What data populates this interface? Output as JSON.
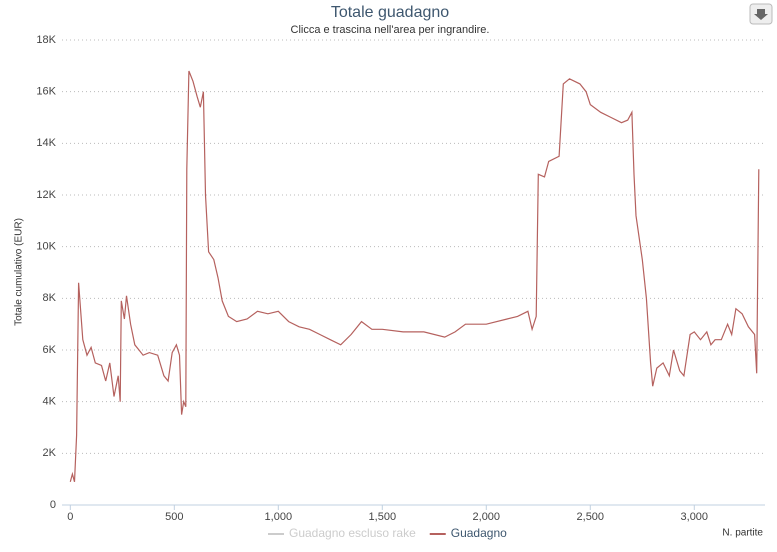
{
  "chart_data": {
    "type": "line",
    "title": "Totale guadagno",
    "subtitle": "Clicca e trascina nell'area per ingrandire.",
    "y_label": "Totale cumulativo (EUR)",
    "x_label": "N. partite",
    "xlim": [
      -40,
      3340
    ],
    "ylim": [
      0,
      18000
    ],
    "xticks": [
      0,
      500,
      {
        "value": 1000,
        "label": "1,000"
      },
      {
        "value": 1500,
        "label": "1,500"
      },
      {
        "value": 2000,
        "label": "2,000"
      },
      {
        "value": 2500,
        "label": "2,500"
      },
      {
        "value": 3000,
        "label": "3,000"
      }
    ],
    "yticks": [
      0,
      {
        "value": 2000,
        "label": "2K"
      },
      {
        "value": 4000,
        "label": "4K"
      },
      {
        "value": 6000,
        "label": "6K"
      },
      {
        "value": 8000,
        "label": "8K"
      },
      {
        "value": 10000,
        "label": "10K"
      },
      {
        "value": 12000,
        "label": "12K"
      },
      {
        "value": 14000,
        "label": "14K"
      },
      {
        "value": 16000,
        "label": "16K"
      },
      {
        "value": 18000,
        "label": "18K"
      }
    ],
    "grid": true,
    "legend": "bottom",
    "x": [
      0,
      10,
      20,
      30,
      40,
      60,
      80,
      100,
      120,
      150,
      170,
      190,
      210,
      230,
      240,
      245,
      260,
      270,
      290,
      310,
      330,
      350,
      380,
      420,
      450,
      470,
      490,
      510,
      525,
      535,
      545,
      555,
      560,
      570,
      590,
      610,
      625,
      640,
      650,
      665,
      690,
      710,
      730,
      760,
      800,
      850,
      900,
      950,
      1000,
      1050,
      1100,
      1150,
      1200,
      1250,
      1300,
      1350,
      1400,
      1450,
      1500,
      1600,
      1700,
      1800,
      1850,
      1900,
      2000,
      2100,
      2150,
      2200,
      2220,
      2240,
      2250,
      2280,
      2300,
      2350,
      2370,
      2400,
      2450,
      2480,
      2500,
      2550,
      2600,
      2650,
      2680,
      2700,
      2710,
      2720,
      2750,
      2770,
      2790,
      2800,
      2820,
      2850,
      2880,
      2900,
      2930,
      2950,
      2980,
      3000,
      3030,
      3060,
      3080,
      3100,
      3130,
      3160,
      3180,
      3200,
      3230,
      3260,
      3290,
      3300,
      3310
    ],
    "series": [
      {
        "name": "Guadagno escluso rake",
        "color": "#cccccc",
        "visible": false
      },
      {
        "name": "Guadagno",
        "color": "#b5615e",
        "visible": true,
        "values": [
          900,
          1200,
          900,
          2700,
          8600,
          6400,
          5800,
          6100,
          5500,
          5400,
          4800,
          5500,
          4200,
          5000,
          4000,
          7900,
          7200,
          8100,
          7000,
          6200,
          6000,
          5800,
          5900,
          5800,
          5000,
          4800,
          5900,
          6200,
          5800,
          3500,
          4000,
          3800,
          13000,
          16800,
          16400,
          15800,
          15400,
          16000,
          12000,
          9800,
          9500,
          8800,
          7900,
          7300,
          7100,
          7200,
          7500,
          7400,
          7500,
          7100,
          6900,
          6800,
          6600,
          6400,
          6200,
          6600,
          7100,
          6800,
          6800,
          6700,
          6700,
          6500,
          6700,
          7000,
          7000,
          7200,
          7300,
          7500,
          6800,
          7300,
          12800,
          12700,
          13300,
          13500,
          16300,
          16500,
          16300,
          16000,
          15500,
          15200,
          15000,
          14800,
          14900,
          15200,
          12800,
          11200,
          9500,
          8000,
          5500,
          4600,
          5300,
          5500,
          5000,
          6000,
          5200,
          5000,
          6600,
          6700,
          6400,
          6700,
          6200,
          6400,
          6400,
          7000,
          6600,
          7600,
          7400,
          6900,
          6600,
          5100,
          13000
        ]
      }
    ]
  }
}
